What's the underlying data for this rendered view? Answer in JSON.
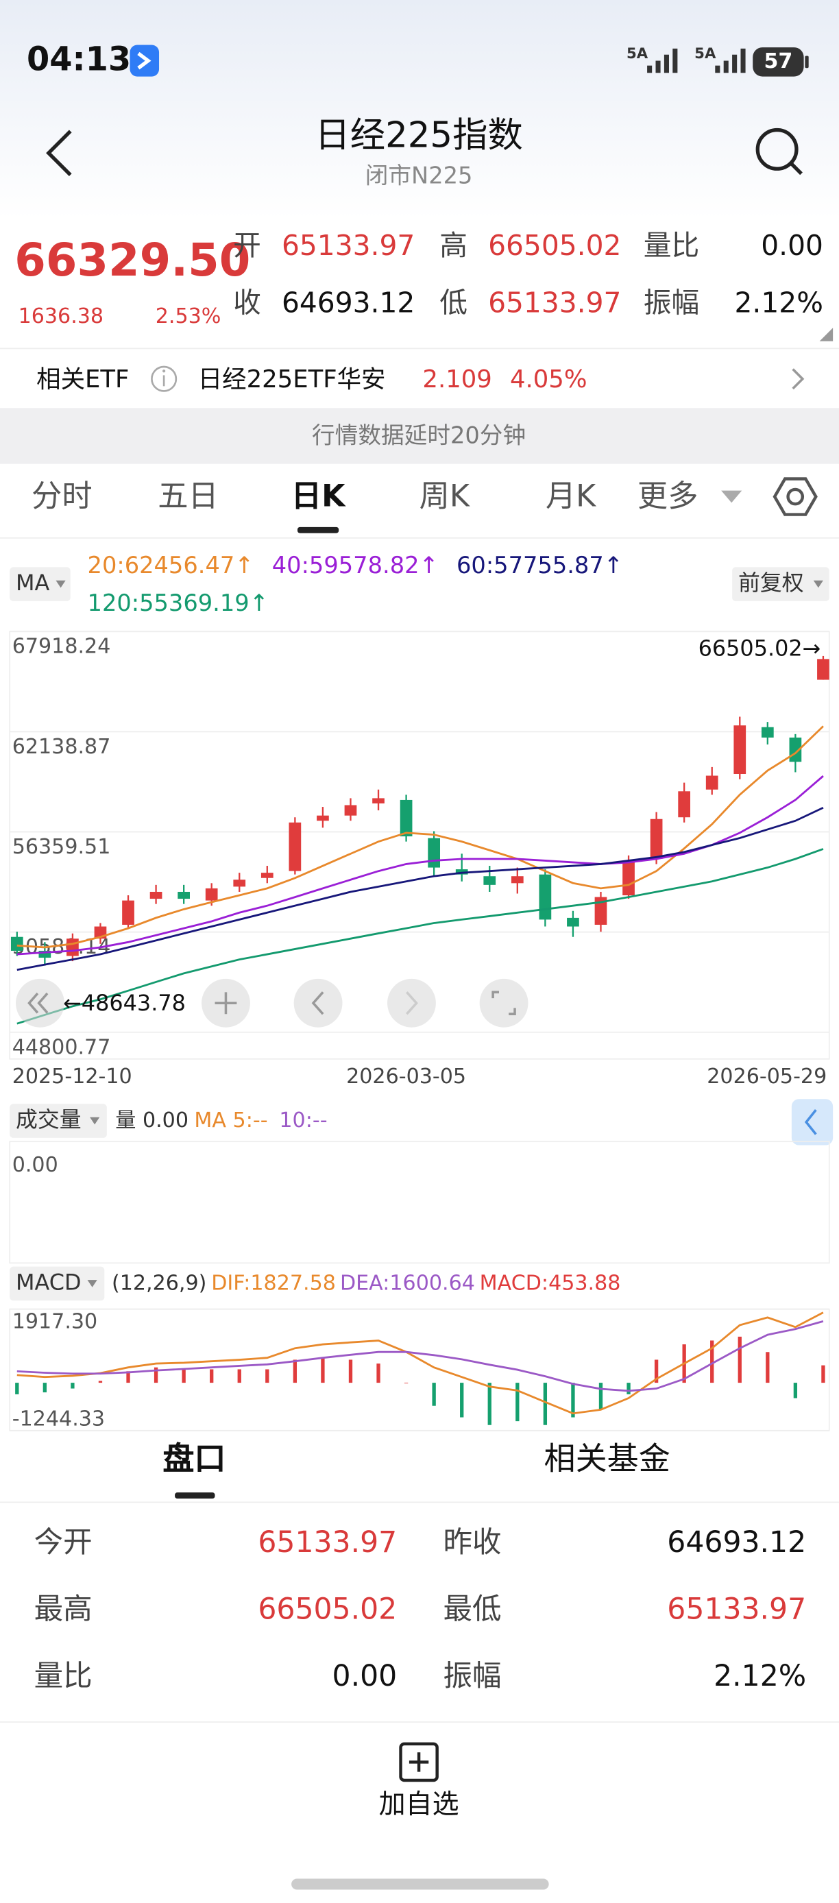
{
  "status_bar": {
    "time": "04:13",
    "signal": "5A",
    "signal2": "5A",
    "battery": "57"
  },
  "header": {
    "title": "日经225指数",
    "subtitle": "闭市N225"
  },
  "quote": {
    "price": "66329.50",
    "change": "1636.38",
    "change_pct": "2.53%",
    "fields": [
      [
        "开",
        "65133.97"
      ],
      [
        "高",
        "66505.02"
      ],
      [
        "量比",
        "0.00"
      ],
      [
        "收",
        "64693.12"
      ],
      [
        "低",
        "65133.97"
      ],
      [
        "振幅",
        "2.12%"
      ]
    ]
  },
  "etf": {
    "label": "相关ETF",
    "name": "日经225ETF华安",
    "price": "2.109",
    "change_pct": "4.05%"
  },
  "notice": "行情数据延时20分钟",
  "tabs": {
    "items": [
      "分时",
      "五日",
      "日K",
      "周K",
      "月K",
      "更多"
    ],
    "active": 2
  },
  "chart_data": [
    {
      "type": "candlestick",
      "ma_title": "MA",
      "adjust": "前复权",
      "categories": [
        "2025-12-10",
        null,
        null,
        null,
        null,
        null,
        null,
        null,
        null,
        null,
        null,
        null,
        null,
        null,
        "2026-03-05",
        null,
        null,
        null,
        null,
        null,
        null,
        null,
        null,
        null,
        null,
        null,
        null,
        null,
        null,
        "2026-05-29"
      ],
      "open": [
        50300,
        49500,
        49200,
        50200,
        51000,
        52500,
        52900,
        52400,
        53200,
        53700,
        54100,
        57000,
        57300,
        58000,
        58200,
        56000,
        54200,
        53800,
        53400,
        53900,
        51400,
        51000,
        52700,
        54800,
        57200,
        58800,
        59700,
        62400,
        61800,
        65133.97
      ],
      "high": [
        50600,
        50000,
        50500,
        51100,
        52700,
        53300,
        53300,
        53400,
        54000,
        54400,
        57200,
        57800,
        58300,
        58800,
        58500,
        56400,
        55100,
        54400,
        54300,
        54200,
        51800,
        52900,
        55000,
        57500,
        59200,
        60100,
        63000,
        62700,
        62000,
        66505.02
      ],
      "low": [
        49200,
        48643.78,
        48900,
        49900,
        50800,
        52200,
        52200,
        52100,
        52900,
        53400,
        53900,
        56600,
        57000,
        57600,
        55800,
        53800,
        53500,
        52900,
        52800,
        50900,
        50300,
        50600,
        52500,
        54500,
        56900,
        58500,
        59400,
        61400,
        59800,
        65133.97
      ],
      "close": [
        49500,
        49100,
        50200,
        50900,
        52400,
        52900,
        52500,
        53100,
        53600,
        54000,
        56900,
        57300,
        57900,
        58300,
        56100,
        54300,
        53900,
        53300,
        53800,
        51300,
        50900,
        52600,
        54700,
        57100,
        58700,
        59600,
        62500,
        61800,
        60400,
        66329.5
      ],
      "up_color": "#e03c3c",
      "down_color": "#15a06e",
      "ylim": [
        44800.77,
        67918.24
      ],
      "yticks": [
        44800.77,
        50580.14,
        56359.51,
        62138.87,
        67918.24
      ],
      "grid": true,
      "series": [
        {
          "label": "20:62456.47↑",
          "color": "#e8892c",
          "values": [
            49800,
            49700,
            49900,
            50300,
            50800,
            51400,
            51900,
            52300,
            52700,
            53100,
            53700,
            54400,
            55100,
            55800,
            56300,
            56200,
            55800,
            55300,
            54800,
            54100,
            53400,
            53100,
            53300,
            54100,
            55400,
            56800,
            58500,
            59900,
            60900,
            62456.47
          ]
        },
        {
          "label": "40:59578.82↑",
          "color": "#9a1fd6",
          "values": [
            49300,
            49400,
            49500,
            49700,
            50000,
            50400,
            50800,
            51200,
            51700,
            52100,
            52600,
            53100,
            53600,
            54100,
            54500,
            54700,
            54800,
            54800,
            54800,
            54700,
            54600,
            54500,
            54600,
            54800,
            55100,
            55600,
            56300,
            57200,
            58200,
            59578.82
          ]
        },
        {
          "label": "60:57755.87↑",
          "color": "#17177a",
          "values": [
            48400,
            48700,
            49000,
            49300,
            49700,
            50100,
            50500,
            50900,
            51300,
            51700,
            52100,
            52500,
            52900,
            53200,
            53500,
            53800,
            54000,
            54100,
            54200,
            54300,
            54400,
            54500,
            54700,
            54900,
            55200,
            55600,
            56000,
            56500,
            57000,
            57755.87
          ]
        },
        {
          "label": "120:55369.19↑",
          "color": "#139a6e",
          "values": [
            45300,
            45800,
            46300,
            46700,
            47200,
            47700,
            48200,
            48600,
            49000,
            49300,
            49600,
            49900,
            50200,
            50500,
            50800,
            51100,
            51300,
            51500,
            51700,
            51900,
            52100,
            52300,
            52600,
            52900,
            53200,
            53500,
            53900,
            54300,
            54800,
            55369.19
          ]
        }
      ],
      "annotations": {
        "max": "66505.02→",
        "min": "←48643.78"
      }
    },
    {
      "type": "volume",
      "title": "成交量",
      "labels": [
        "量 0.00",
        "MA 5:--",
        "10:--"
      ],
      "yticks": [
        {
          "value": 0,
          "label": "0.00"
        }
      ]
    },
    {
      "type": "macd",
      "title": "MACD",
      "params": "(12,26,9)",
      "ylim": [
        -1244.33,
        1917.3
      ],
      "yticks": [
        {
          "value": 1917.3,
          "label": "1917.30"
        },
        {
          "value": -1244.33,
          "label": "-1244.33"
        }
      ],
      "series": [
        {
          "label": "DIF:1827.58",
          "color": "#e8892c",
          "values": [
            200,
            150,
            180,
            250,
            400,
            500,
            520,
            560,
            600,
            650,
            900,
            1000,
            1050,
            1100,
            800,
            400,
            150,
            -100,
            -200,
            -500,
            -800,
            -700,
            -400,
            100,
            500,
            900,
            1500,
            1700,
            1450,
            1827.58
          ]
        },
        {
          "label": "DEA:1600.64",
          "color": "#9b59c6",
          "values": [
            300,
            260,
            240,
            240,
            270,
            320,
            360,
            400,
            440,
            480,
            560,
            650,
            730,
            800,
            800,
            720,
            610,
            470,
            340,
            170,
            -30,
            -160,
            -210,
            -150,
            100,
            500,
            900,
            1250,
            1400,
            1600.64
          ]
        }
      ],
      "histogram": {
        "label": "MACD:453.88",
        "up_color": "#e03c3c",
        "down_color": "#15a06e",
        "values": [
          -300,
          -250,
          -150,
          50,
          300,
          400,
          350,
          350,
          350,
          350,
          600,
          650,
          600,
          500,
          0,
          -600,
          -900,
          -1100,
          -1000,
          -1100,
          -900,
          -700,
          -300,
          600,
          1000,
          1100,
          1200,
          800,
          -400,
          453.88
        ]
      }
    }
  ],
  "bottom_tabs": {
    "items": [
      "盘口",
      "相关基金"
    ],
    "active": 0
  },
  "table": {
    "rows": [
      [
        "今开",
        "65133.97",
        "昨收",
        "64693.12"
      ],
      [
        "最高",
        "66505.02",
        "最低",
        "65133.97"
      ],
      [
        "量比",
        "0.00",
        "振幅",
        "2.12%"
      ]
    ]
  },
  "action": "加自选"
}
